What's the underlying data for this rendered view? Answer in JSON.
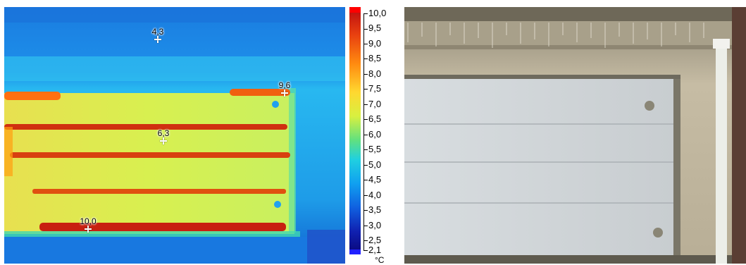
{
  "thermal_image": {
    "spots": [
      {
        "label": "4,3",
        "value": 4.3
      },
      {
        "label": "9,6",
        "value": 9.6
      },
      {
        "label": "6,3",
        "value": 6.3
      },
      {
        "label": "10,0",
        "value": 10.0
      }
    ]
  },
  "temperature_scale": {
    "max": 10.0,
    "min": 2.1,
    "unit": "°C",
    "ticks": [
      "10,0",
      "9,5",
      "9,0",
      "8,5",
      "8,0",
      "7,5",
      "7,0",
      "6,5",
      "6,0",
      "5,5",
      "5,0",
      "4,5",
      "4,0",
      "3,5",
      "3,0",
      "2,5",
      "2,1"
    ]
  },
  "photo": {
    "subject": "garage door"
  }
}
